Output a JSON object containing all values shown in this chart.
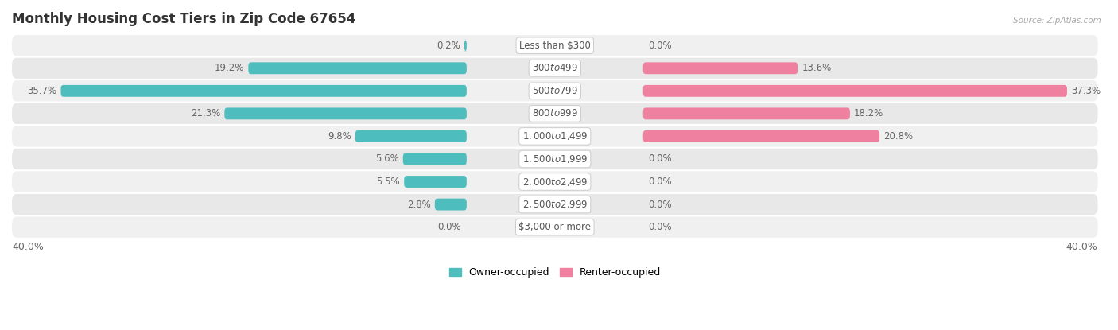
{
  "title": "Monthly Housing Cost Tiers in Zip Code 67654",
  "source": "Source: ZipAtlas.com",
  "categories": [
    "Less than $300",
    "$300 to $499",
    "$500 to $799",
    "$800 to $999",
    "$1,000 to $1,499",
    "$1,500 to $1,999",
    "$2,000 to $2,499",
    "$2,500 to $2,999",
    "$3,000 or more"
  ],
  "owner_values": [
    0.2,
    19.2,
    35.7,
    21.3,
    9.8,
    5.6,
    5.5,
    2.8,
    0.0
  ],
  "renter_values": [
    0.0,
    13.6,
    37.3,
    18.2,
    20.8,
    0.0,
    0.0,
    0.0,
    0.0
  ],
  "owner_color": "#4dbdbe",
  "renter_color": "#f080a0",
  "owner_label": "Owner-occupied",
  "renter_label": "Renter-occupied",
  "axis_max": 40.0,
  "title_fontsize": 12,
  "val_fontsize": 8.5,
  "cat_fontsize": 8.5,
  "tick_fontsize": 9,
  "legend_fontsize": 9,
  "row_colors": [
    "#f0f0f0",
    "#e8e8e8"
  ],
  "label_color": "#666666",
  "cat_label_color": "#555555"
}
